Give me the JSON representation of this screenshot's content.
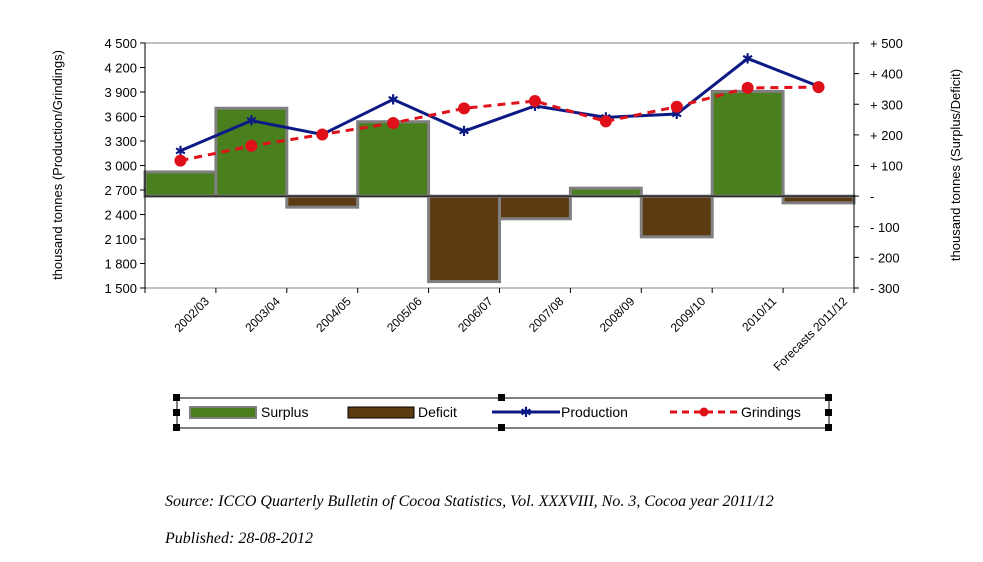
{
  "chart_data": {
    "type": "bar-line-combo",
    "categories": [
      "2002/03",
      "2003/04",
      "2004/05",
      "2005/06",
      "2006/07",
      "2007/08",
      "2008/09",
      "2009/10",
      "2010/11",
      "Forecasts 2011/12"
    ],
    "series": [
      {
        "name": "Surplus/Deficit",
        "axis": "right",
        "values": [
          79,
          287,
          -36,
          243,
          -279,
          -74,
          26,
          -133,
          342,
          -22
        ]
      },
      {
        "name": "Production",
        "axis": "left",
        "values": [
          3180,
          3550,
          3380,
          3810,
          3420,
          3730,
          3590,
          3630,
          4310,
          3970
        ]
      },
      {
        "name": "Grindings",
        "axis": "left",
        "values": [
          3060,
          3240,
          3380,
          3520,
          3700,
          3790,
          3540,
          3720,
          3950,
          3960
        ]
      }
    ],
    "ylabel_left": "thousand tonnes (Production/Grindings)",
    "ylabel_right": "thousand tonnes (Surplus/Deficit)",
    "ylim_left": [
      1500,
      4500
    ],
    "ylim_right": [
      -300,
      500
    ],
    "yticks_left": [
      "4 500",
      "4 200",
      "3 900",
      "3 600",
      "3 300",
      "3 000",
      "2 700",
      "2 400",
      "2 100",
      "1 800",
      "1 500"
    ],
    "yticks_right": [
      "+ 500",
      "+ 400",
      "+ 300",
      "+ 200",
      "+ 100",
      "-",
      "- 100",
      "- 200",
      "- 300"
    ],
    "legend": [
      "Surplus",
      "Deficit",
      "Production",
      "Grindings"
    ],
    "legend_position": "bottom",
    "colors": {
      "surplus": "#4a7f1e",
      "deficit": "#5c3a12",
      "bar_border": "#808080",
      "production": "#0d1a85",
      "grindings": "#e0101a"
    }
  },
  "source_text": "Source: ICCO Quarterly Bulletin of Cocoa Statistics, Vol. XXXVIII, No. 3, Cocoa year 2011/12",
  "published_text": "Published: 28-08-2012"
}
